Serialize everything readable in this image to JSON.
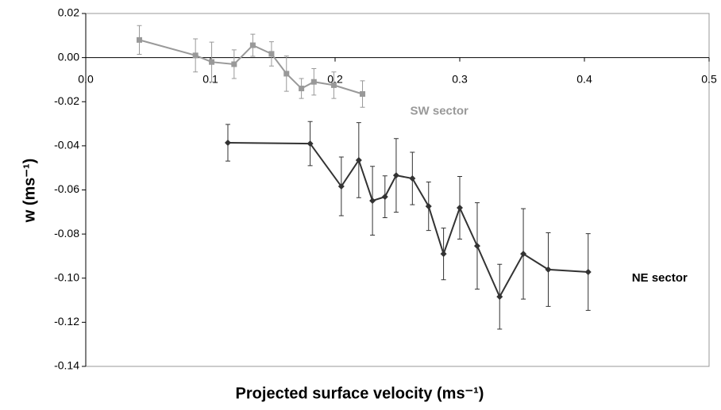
{
  "chart_data": {
    "type": "line",
    "x_label": "Projected surface velocity (ms⁻¹)",
    "y_label": "w (ms⁻¹)",
    "xlim": [
      0,
      0.5
    ],
    "xticks": [
      {
        "value": 0,
        "label": "0.0"
      },
      0.1,
      0.2,
      0.3,
      0.4,
      0.5
    ],
    "ylim": [
      -0.14,
      0.02
    ],
    "yticks": [
      0.02,
      {
        "value": 0,
        "label": "0.00"
      },
      -0.02,
      -0.04,
      -0.06,
      -0.08,
      {
        "value": -0.1,
        "label": "-0.10"
      },
      -0.12,
      -0.14
    ],
    "grid": false,
    "series": [
      {
        "name": "SW sector",
        "color": "#999999",
        "marker": "square",
        "x": [
          0.043,
          0.088,
          0.101,
          0.119,
          0.134,
          0.149,
          0.161,
          0.173,
          0.183,
          0.199,
          0.222
        ],
        "values": [
          0.008,
          0.001,
          -0.002,
          -0.003,
          0.0056,
          0.0017,
          -0.0073,
          -0.014,
          -0.011,
          -0.0125,
          -0.0165
        ],
        "errors": [
          0.0065,
          0.0075,
          0.009,
          0.0065,
          0.005,
          0.0055,
          0.008,
          0.0045,
          0.006,
          0.006,
          0.006
        ]
      },
      {
        "name": "NE sector",
        "color": "#333333",
        "marker": "diamond",
        "x": [
          0.114,
          0.18,
          0.205,
          0.219,
          0.23,
          0.24,
          0.249,
          0.262,
          0.275,
          0.287,
          0.3,
          0.314,
          0.332,
          0.351,
          0.371,
          0.403
        ],
        "values": [
          -0.0386,
          -0.039,
          -0.0584,
          -0.0465,
          -0.0649,
          -0.0631,
          -0.0534,
          -0.0548,
          -0.0674,
          -0.089,
          -0.0681,
          -0.0854,
          -0.1084,
          -0.089,
          -0.0961,
          -0.0972
        ],
        "errors": [
          0.0083,
          0.01,
          0.0133,
          0.017,
          0.0156,
          0.0095,
          0.0167,
          0.0119,
          0.011,
          0.0117,
          0.0142,
          0.0196,
          0.0147,
          0.0205,
          0.0167,
          0.0174
        ]
      }
    ]
  }
}
